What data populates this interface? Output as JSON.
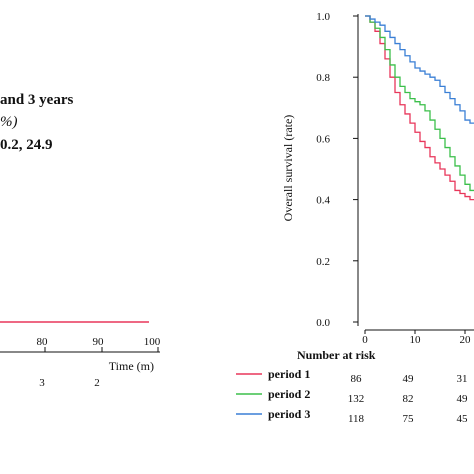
{
  "left_panel": {
    "annotation_line1": "and 3 years",
    "annotation_line2": "%)",
    "annotation_line3": "0.2, 24.9",
    "x_ticks": [
      "80",
      "90",
      "100"
    ],
    "x_axis_label": "Time (m)",
    "risk_partial": [
      "3",
      "2"
    ],
    "flat_line_color": "#e8365a"
  },
  "chart_data": {
    "type": "line",
    "title": "",
    "xlabel": "",
    "ylabel": "Overall survival (rate)",
    "xlim": [
      0,
      25
    ],
    "ylim": [
      0.0,
      1.0
    ],
    "y_ticks": [
      "1.0",
      "0.8",
      "0.6",
      "0.4",
      "0.2",
      "0.0"
    ],
    "x_ticks": [
      "0",
      "10",
      "20"
    ],
    "grid": false,
    "series": [
      {
        "name": "period 1",
        "color": "#e8365a",
        "x": [
          0,
          1,
          2,
          3,
          4,
          5,
          6,
          7,
          8,
          9,
          10,
          11,
          12,
          13,
          14,
          15,
          16,
          17,
          18,
          19,
          20,
          21,
          22,
          23,
          24,
          25
        ],
        "y": [
          1.0,
          0.98,
          0.95,
          0.91,
          0.86,
          0.8,
          0.75,
          0.71,
          0.68,
          0.65,
          0.62,
          0.59,
          0.57,
          0.54,
          0.52,
          0.5,
          0.48,
          0.46,
          0.43,
          0.42,
          0.41,
          0.4,
          0.4,
          0.4,
          0.39,
          0.39
        ]
      },
      {
        "name": "period 2",
        "color": "#3bbf4a",
        "x": [
          0,
          1,
          2,
          3,
          4,
          5,
          6,
          7,
          8,
          9,
          10,
          11,
          12,
          13,
          14,
          15,
          16,
          17,
          18,
          19,
          20,
          21,
          22,
          23,
          24,
          25
        ],
        "y": [
          1.0,
          0.98,
          0.96,
          0.93,
          0.89,
          0.84,
          0.8,
          0.77,
          0.75,
          0.73,
          0.72,
          0.71,
          0.69,
          0.66,
          0.63,
          0.6,
          0.57,
          0.54,
          0.51,
          0.48,
          0.45,
          0.43,
          0.42,
          0.42,
          0.41,
          0.41
        ]
      },
      {
        "name": "period 3",
        "color": "#3a7fd5",
        "x": [
          0,
          1,
          2,
          3,
          4,
          5,
          6,
          7,
          8,
          9,
          10,
          11,
          12,
          13,
          14,
          15,
          16,
          17,
          18,
          19,
          20,
          21,
          22,
          23,
          24,
          25
        ],
        "y": [
          1.0,
          0.99,
          0.98,
          0.97,
          0.95,
          0.93,
          0.91,
          0.89,
          0.87,
          0.85,
          0.83,
          0.82,
          0.81,
          0.8,
          0.79,
          0.77,
          0.75,
          0.73,
          0.71,
          0.69,
          0.66,
          0.65,
          0.65,
          0.65,
          0.64,
          0.64
        ]
      }
    ]
  },
  "risk_table": {
    "title": "Number at risk",
    "rows": [
      {
        "label": "period 1",
        "color": "#e8365a",
        "counts": [
          "86",
          "49",
          "31"
        ]
      },
      {
        "label": "period 2",
        "color": "#3bbf4a",
        "counts": [
          "132",
          "82",
          "49"
        ]
      },
      {
        "label": "period 3",
        "color": "#3a7fd5",
        "counts": [
          "118",
          "75",
          "45"
        ]
      }
    ]
  }
}
